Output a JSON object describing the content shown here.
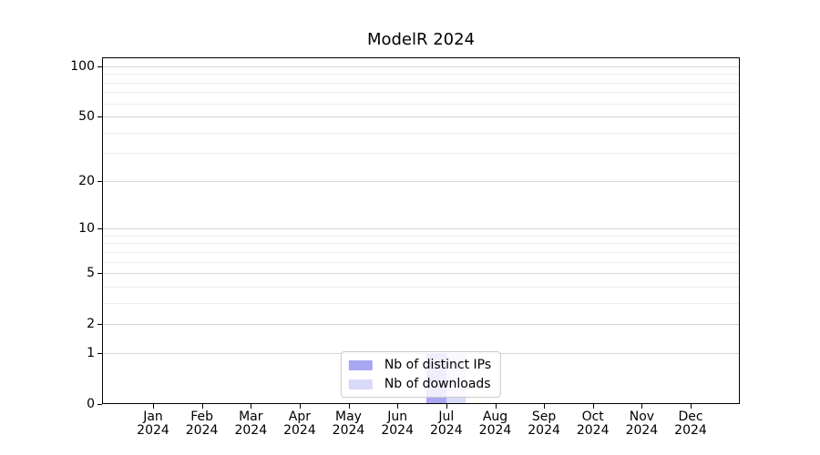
{
  "title": "ModelR 2024",
  "chart_data": {
    "type": "bar",
    "title": "ModelR 2024",
    "x_categories": [
      {
        "month": "Jan",
        "year": "2024"
      },
      {
        "month": "Feb",
        "year": "2024"
      },
      {
        "month": "Mar",
        "year": "2024"
      },
      {
        "month": "Apr",
        "year": "2024"
      },
      {
        "month": "May",
        "year": "2024"
      },
      {
        "month": "Jun",
        "year": "2024"
      },
      {
        "month": "Jul",
        "year": "2024"
      },
      {
        "month": "Aug",
        "year": "2024"
      },
      {
        "month": "Sep",
        "year": "2024"
      },
      {
        "month": "Oct",
        "year": "2024"
      },
      {
        "month": "Nov",
        "year": "2024"
      },
      {
        "month": "Dec",
        "year": "2024"
      }
    ],
    "series": [
      {
        "name": "Nb of distinct IPs",
        "color": "#a8a8f2",
        "values": [
          0,
          0,
          0,
          0,
          0,
          0,
          1,
          0,
          0,
          0,
          0,
          0
        ]
      },
      {
        "name": "Nb of downloads",
        "color": "#d9d9f8",
        "values": [
          0,
          0,
          0,
          0,
          0,
          0,
          1,
          0,
          0,
          0,
          0,
          0
        ]
      }
    ],
    "xlabel": "",
    "ylabel": "",
    "yscale": "log1p",
    "ylim": [
      0,
      112
    ],
    "y_major_ticks": [
      0,
      1,
      2,
      5,
      10,
      20,
      50,
      100
    ],
    "y_minor_ticks": [
      3,
      4,
      6,
      7,
      8,
      9,
      30,
      40,
      60,
      70,
      80,
      90
    ],
    "grid": true,
    "legend_position": "lower center"
  }
}
